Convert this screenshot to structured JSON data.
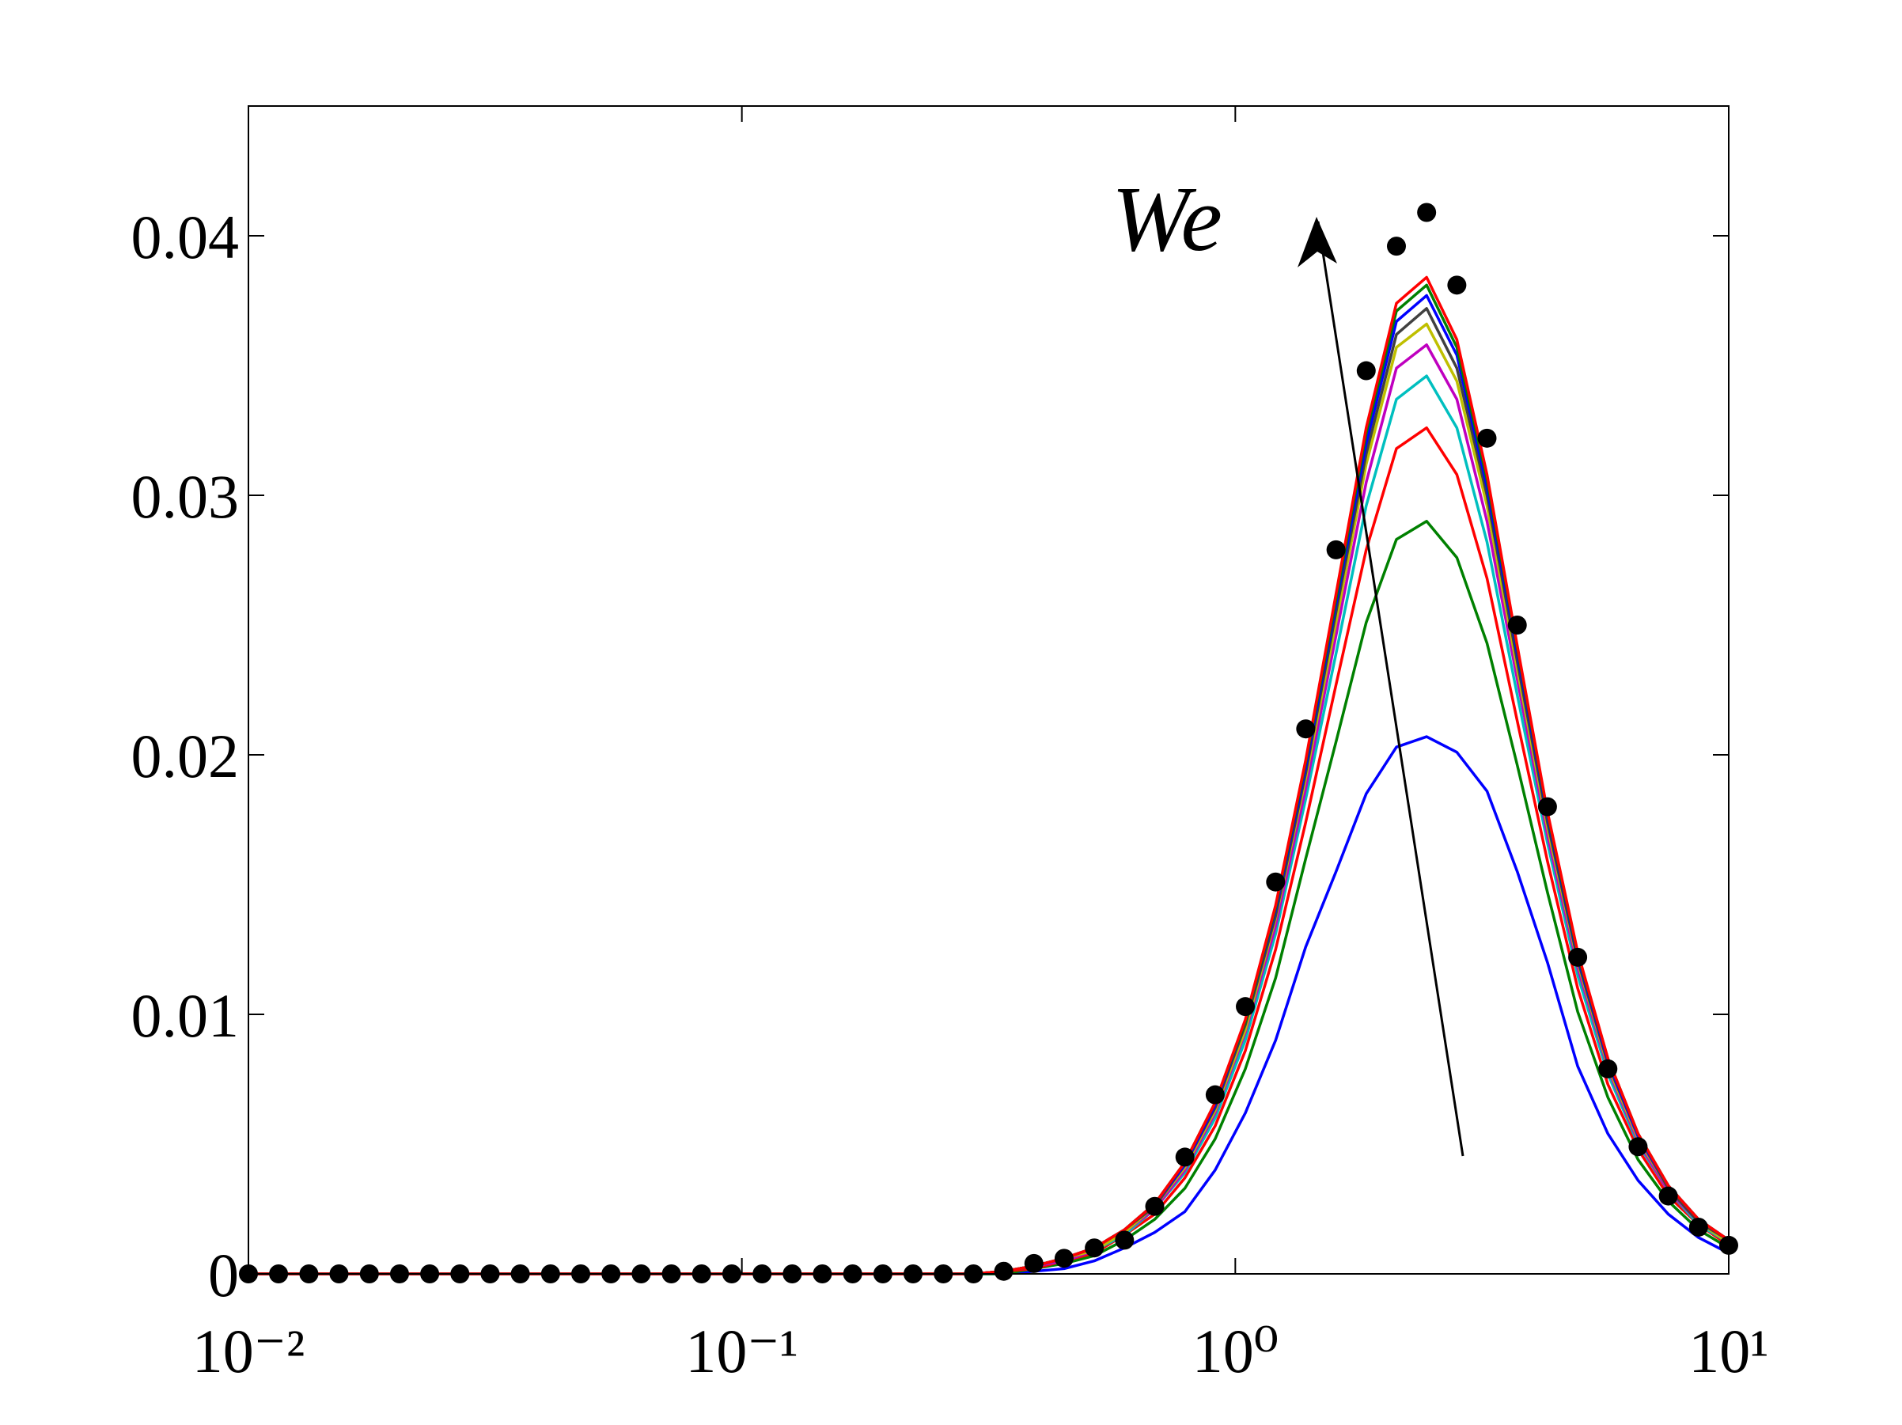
{
  "chart_data": {
    "type": "line",
    "annotation": "We",
    "xscale": "log",
    "xlim": [
      0.01,
      10
    ],
    "xticks": [
      {
        "value": 0.01,
        "label": "10⁻²"
      },
      {
        "value": 0.1,
        "label": "10⁻¹"
      },
      {
        "value": 1,
        "label": "10⁰"
      },
      {
        "value": 10,
        "label": "10¹"
      }
    ],
    "ylim": [
      0,
      0.045
    ],
    "yticks": [
      0,
      0.01,
      0.02,
      0.03,
      0.04
    ],
    "grid": false,
    "x": [
      0.01,
      0.01151,
      0.01326,
      0.01526,
      0.01758,
      0.02024,
      0.0233,
      0.02683,
      0.03089,
      0.03556,
      0.04095,
      0.04715,
      0.05429,
      0.06251,
      0.07197,
      0.08286,
      0.09541,
      0.1099,
      0.1265,
      0.1456,
      0.1677,
      0.1931,
      0.2223,
      0.256,
      0.2947,
      0.3393,
      0.3907,
      0.4498,
      0.5179,
      0.5963,
      0.6866,
      0.7906,
      0.9103,
      1.048,
      1.207,
      1.389,
      1.6,
      1.842,
      2.121,
      2.442,
      2.812,
      3.237,
      3.728,
      4.292,
      4.942,
      5.69,
      6.551,
      7.543,
      8.685,
      10
    ],
    "series": [
      {
        "color": "#0000ff",
        "style": "line",
        "values": [
          0,
          0,
          0,
          0,
          0,
          0,
          0,
          0,
          0,
          0,
          0,
          0,
          0,
          0,
          0,
          0,
          0,
          0,
          0,
          0,
          0,
          0,
          0,
          0,
          0,
          0,
          0.0001,
          0.0002,
          0.0005,
          0.001,
          0.0016,
          0.0024,
          0.004,
          0.0062,
          0.009,
          0.0126,
          0.0155,
          0.0185,
          0.0203,
          0.0207,
          0.0201,
          0.0186,
          0.0155,
          0.012,
          0.008,
          0.0054,
          0.0036,
          0.0023,
          0.0014,
          0.0008
        ]
      },
      {
        "color": "#008000",
        "style": "line",
        "values": [
          0,
          0,
          0,
          0,
          0,
          0,
          0,
          0,
          0,
          0,
          0,
          0,
          0,
          0,
          0,
          0,
          0,
          0,
          0,
          0,
          0,
          0,
          0,
          0,
          0,
          0,
          0.0002,
          0.0004,
          0.0007,
          0.0013,
          0.0021,
          0.0033,
          0.0052,
          0.0079,
          0.0114,
          0.016,
          0.0205,
          0.0251,
          0.0283,
          0.029,
          0.0276,
          0.0243,
          0.0196,
          0.0147,
          0.0101,
          0.0068,
          0.0044,
          0.0028,
          0.0017,
          0.001
        ]
      },
      {
        "color": "#ff0000",
        "style": "line",
        "values": [
          0,
          0,
          0,
          0,
          0,
          0,
          0,
          0,
          0,
          0,
          0,
          0,
          0,
          0,
          0,
          0,
          0,
          0,
          0,
          0,
          0,
          0,
          0,
          0,
          0,
          0.0001,
          0.0002,
          0.0005,
          0.0008,
          0.0015,
          0.0023,
          0.0037,
          0.0057,
          0.0086,
          0.0125,
          0.0174,
          0.0227,
          0.0279,
          0.0318,
          0.0326,
          0.0308,
          0.0268,
          0.0213,
          0.0159,
          0.011,
          0.0073,
          0.0048,
          0.003,
          0.0019,
          0.0011
        ]
      },
      {
        "color": "#00bfbf",
        "style": "line",
        "values": [
          0,
          0,
          0,
          0,
          0,
          0,
          0,
          0,
          0,
          0,
          0,
          0,
          0,
          0,
          0,
          0,
          0,
          0,
          0,
          0,
          0,
          0,
          0,
          0,
          0,
          0.0001,
          0.0003,
          0.0005,
          0.0009,
          0.0015,
          0.0025,
          0.0039,
          0.006,
          0.009,
          0.0131,
          0.0183,
          0.0239,
          0.0296,
          0.0337,
          0.0346,
          0.0326,
          0.0282,
          0.0223,
          0.0166,
          0.0115,
          0.0077,
          0.005,
          0.0032,
          0.0019,
          0.0012
        ]
      },
      {
        "color": "#bf00bf",
        "style": "line",
        "values": [
          0,
          0,
          0,
          0,
          0,
          0,
          0,
          0,
          0,
          0,
          0,
          0,
          0,
          0,
          0,
          0,
          0,
          0,
          0,
          0,
          0,
          0,
          0,
          0,
          0,
          0.0001,
          0.0003,
          0.0005,
          0.0009,
          0.0016,
          0.0025,
          0.004,
          0.0062,
          0.0093,
          0.0134,
          0.0187,
          0.0246,
          0.0305,
          0.0349,
          0.0358,
          0.0337,
          0.029,
          0.0229,
          0.0169,
          0.0118,
          0.0079,
          0.0051,
          0.0032,
          0.002,
          0.0012
        ]
      },
      {
        "color": "#bfbf00",
        "style": "line",
        "values": [
          0,
          0,
          0,
          0,
          0,
          0,
          0,
          0,
          0,
          0,
          0,
          0,
          0,
          0,
          0,
          0,
          0,
          0,
          0,
          0,
          0,
          0,
          0,
          0,
          0,
          0.0001,
          0.0003,
          0.0006,
          0.0009,
          0.0016,
          0.0026,
          0.0041,
          0.0063,
          0.0094,
          0.0137,
          0.0191,
          0.0251,
          0.0312,
          0.0357,
          0.0366,
          0.0344,
          0.0296,
          0.0233,
          0.0172,
          0.012,
          0.008,
          0.0052,
          0.0033,
          0.002,
          0.0012
        ]
      },
      {
        "color": "#404040",
        "style": "line",
        "values": [
          0,
          0,
          0,
          0,
          0,
          0,
          0,
          0,
          0,
          0,
          0,
          0,
          0,
          0,
          0,
          0,
          0,
          0,
          0,
          0,
          0,
          0,
          0,
          0,
          0,
          0.0001,
          0.0003,
          0.0006,
          0.001,
          0.0017,
          0.0026,
          0.0042,
          0.0064,
          0.0096,
          0.0138,
          0.0193,
          0.0255,
          0.0316,
          0.0362,
          0.0372,
          0.0349,
          0.03,
          0.0236,
          0.0174,
          0.0121,
          0.0081,
          0.0053,
          0.0033,
          0.002,
          0.0013
        ]
      },
      {
        "color": "#0000ff",
        "style": "line",
        "values": [
          0,
          0,
          0,
          0,
          0,
          0,
          0,
          0,
          0,
          0,
          0,
          0,
          0,
          0,
          0,
          0,
          0,
          0,
          0,
          0,
          0,
          0,
          0,
          0,
          0,
          0.0001,
          0.0003,
          0.0006,
          0.001,
          0.0017,
          0.0027,
          0.0042,
          0.0065,
          0.0097,
          0.014,
          0.0195,
          0.0258,
          0.032,
          0.0367,
          0.0377,
          0.0354,
          0.0303,
          0.0239,
          0.0176,
          0.0122,
          0.0082,
          0.0053,
          0.0034,
          0.0021,
          0.0013
        ]
      },
      {
        "color": "#008000",
        "style": "line",
        "values": [
          0,
          0,
          0,
          0,
          0,
          0,
          0,
          0,
          0,
          0,
          0,
          0,
          0,
          0,
          0,
          0,
          0,
          0,
          0,
          0,
          0,
          0,
          0,
          0,
          0,
          0.0001,
          0.0003,
          0.0006,
          0.001,
          0.0017,
          0.0027,
          0.0043,
          0.0066,
          0.0097,
          0.0141,
          0.0197,
          0.026,
          0.0324,
          0.0371,
          0.0381,
          0.0357,
          0.0306,
          0.0241,
          0.0177,
          0.0123,
          0.0083,
          0.0054,
          0.0034,
          0.0021,
          0.0013
        ]
      },
      {
        "color": "#ff0000",
        "style": "line",
        "values": [
          0,
          0,
          0,
          0,
          0,
          0,
          0,
          0,
          0,
          0,
          0,
          0,
          0,
          0,
          0,
          0,
          0,
          0,
          0,
          0,
          0,
          0,
          0,
          0,
          0,
          0.0001,
          0.0003,
          0.0006,
          0.001,
          0.0017,
          0.0027,
          0.0043,
          0.0066,
          0.0098,
          0.0142,
          0.0198,
          0.0262,
          0.0326,
          0.0374,
          0.0384,
          0.036,
          0.0308,
          0.0242,
          0.0178,
          0.0124,
          0.0083,
          0.0054,
          0.0034,
          0.0021,
          0.0013
        ]
      },
      {
        "color": "#000000",
        "style": "markers",
        "values": [
          0,
          0,
          0,
          0,
          0,
          0,
          0,
          0,
          0,
          0,
          0,
          0,
          0,
          0,
          0,
          0,
          0,
          0,
          0,
          0,
          0,
          0,
          0,
          0,
          0,
          0.0001,
          0.0004,
          0.0006,
          0.001,
          0.0013,
          0.0026,
          0.0045,
          0.0069,
          0.0103,
          0.0151,
          0.021,
          0.0279,
          0.0348,
          0.0396,
          0.0409,
          0.0381,
          0.0322,
          0.025,
          0.018,
          0.0122,
          0.0079,
          0.0049,
          0.003,
          0.0018,
          0.0011
        ]
      }
    ]
  }
}
